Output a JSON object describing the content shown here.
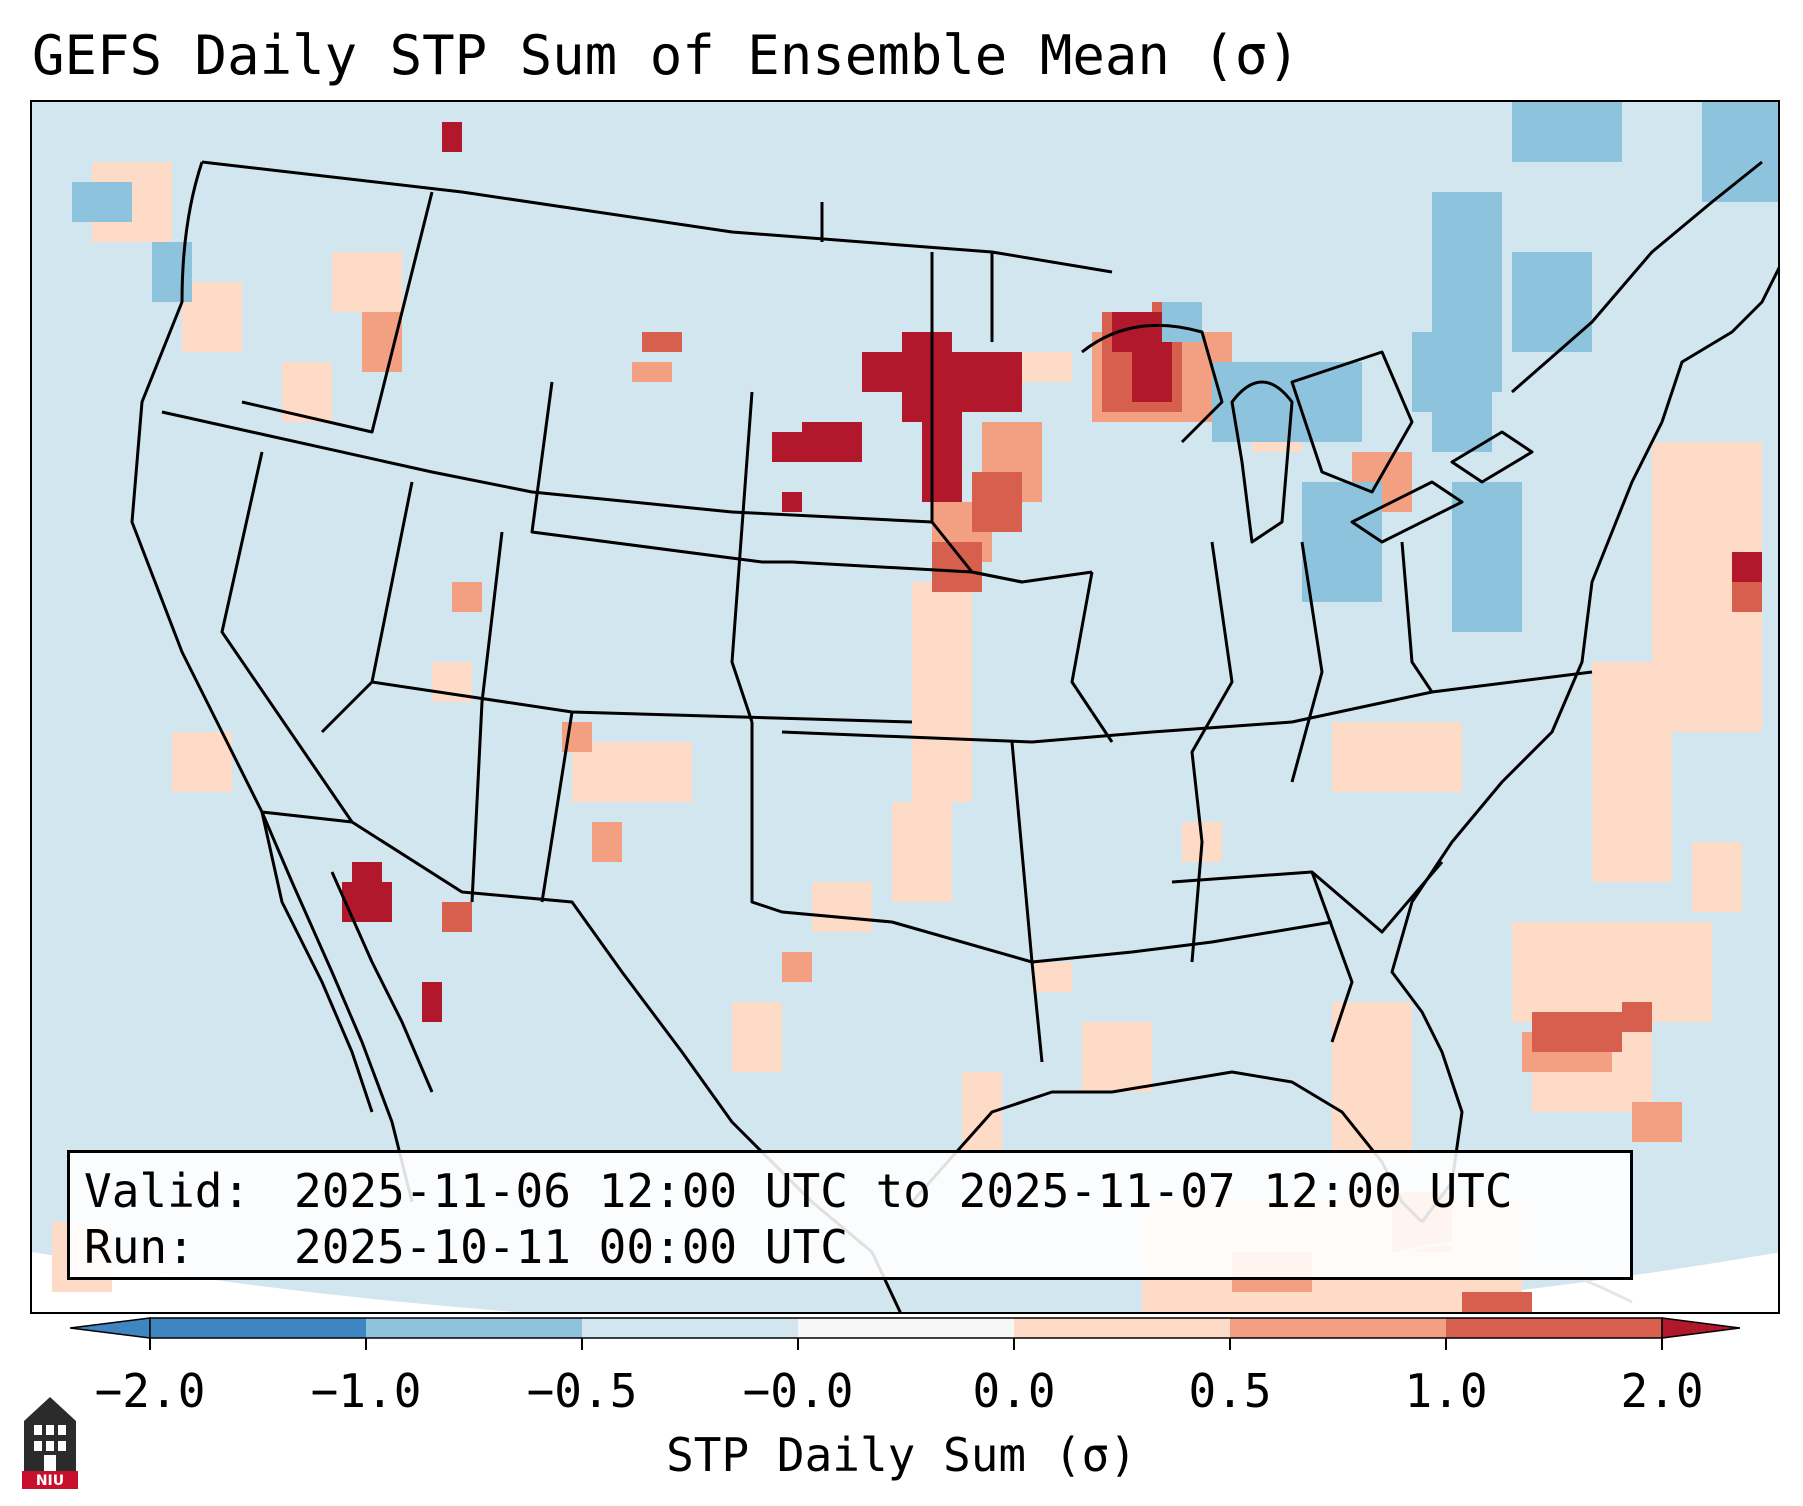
{
  "title": "GEFS Daily STP Sum of Ensemble Mean (σ)",
  "info": {
    "valid_label": "Valid:",
    "valid_value": "2025-11-06 12:00 UTC to 2025-11-07 12:00 UTC",
    "run_label": "Run:",
    "run_value": "2025-10-11 00:00 UTC"
  },
  "colorbar": {
    "label": "STP Daily Sum (σ)",
    "ticks": [
      "−2.0",
      "−1.0",
      "−0.5",
      "−0.0",
      "0.0",
      "0.5",
      "1.0",
      "2.0"
    ],
    "colors": [
      "#3f86c0",
      "#8ec3de",
      "#d2e6f0",
      "#f7f7f7",
      "#fddbc7",
      "#f2a081",
      "#d6604d",
      "#b2182b"
    ]
  },
  "map": {
    "region": "Continental United States",
    "background_color": "#d2e6f0"
  },
  "logo": {
    "text": "NIU",
    "color": "#c8102e"
  }
}
